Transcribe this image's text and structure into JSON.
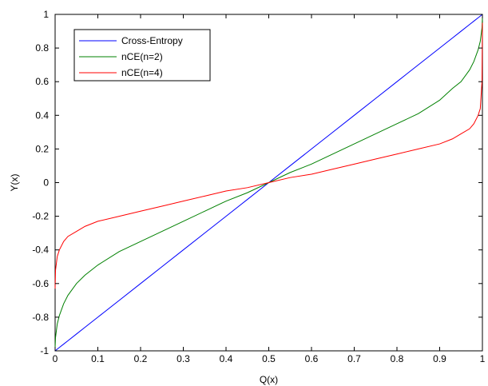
{
  "chart_data": {
    "type": "line",
    "title": "",
    "xlabel": "Q(x)",
    "ylabel": "Y(x)",
    "xlim": [
      0,
      1
    ],
    "ylim": [
      -1,
      1
    ],
    "grid": false,
    "legend_position": "top-left",
    "x_ticks": [
      "0",
      "0.1",
      "0.2",
      "0.3",
      "0.4",
      "0.5",
      "0.6",
      "0.7",
      "0.8",
      "0.9",
      "1"
    ],
    "y_ticks": [
      "-1",
      "-0.8",
      "-0.6",
      "-0.4",
      "-0.2",
      "0",
      "0.2",
      "0.4",
      "0.6",
      "0.8",
      "1"
    ],
    "x": [
      0,
      0.001,
      0.005,
      0.01,
      0.02,
      0.03,
      0.05,
      0.07,
      0.1,
      0.15,
      0.2,
      0.25,
      0.3,
      0.35,
      0.4,
      0.45,
      0.5,
      0.55,
      0.6,
      0.65,
      0.7,
      0.75,
      0.8,
      0.85,
      0.9,
      0.93,
      0.95,
      0.97,
      0.98,
      0.99,
      0.995,
      0.999,
      1
    ],
    "series": [
      {
        "name": "Cross-Entropy",
        "color": "#0000ff",
        "values": [
          -1,
          -0.998,
          -0.99,
          -0.98,
          -0.96,
          -0.94,
          -0.9,
          -0.86,
          -0.8,
          -0.7,
          -0.6,
          -0.5,
          -0.4,
          -0.3,
          -0.2,
          -0.1,
          0,
          0.1,
          0.2,
          0.3,
          0.4,
          0.5,
          0.6,
          0.7,
          0.8,
          0.86,
          0.9,
          0.94,
          0.96,
          0.98,
          0.99,
          0.998,
          1
        ]
      },
      {
        "name": "nCE(n=2)",
        "color": "#008000",
        "values": [
          -0.98,
          -0.92,
          -0.84,
          -0.79,
          -0.72,
          -0.67,
          -0.6,
          -0.55,
          -0.49,
          -0.41,
          -0.35,
          -0.29,
          -0.23,
          -0.17,
          -0.11,
          -0.06,
          0,
          0.06,
          0.11,
          0.17,
          0.23,
          0.29,
          0.35,
          0.41,
          0.49,
          0.56,
          0.6,
          0.67,
          0.72,
          0.79,
          0.84,
          0.92,
          0.98
        ]
      },
      {
        "name": "nCE(n=4)",
        "color": "#ff0000",
        "values": [
          -0.63,
          -0.52,
          -0.44,
          -0.4,
          -0.35,
          -0.32,
          -0.29,
          -0.26,
          -0.23,
          -0.2,
          -0.17,
          -0.14,
          -0.11,
          -0.08,
          -0.05,
          -0.03,
          0,
          0.03,
          0.05,
          0.08,
          0.11,
          0.14,
          0.17,
          0.2,
          0.23,
          0.26,
          0.29,
          0.32,
          0.35,
          0.4,
          0.44,
          0.6,
          0.95
        ]
      }
    ]
  }
}
